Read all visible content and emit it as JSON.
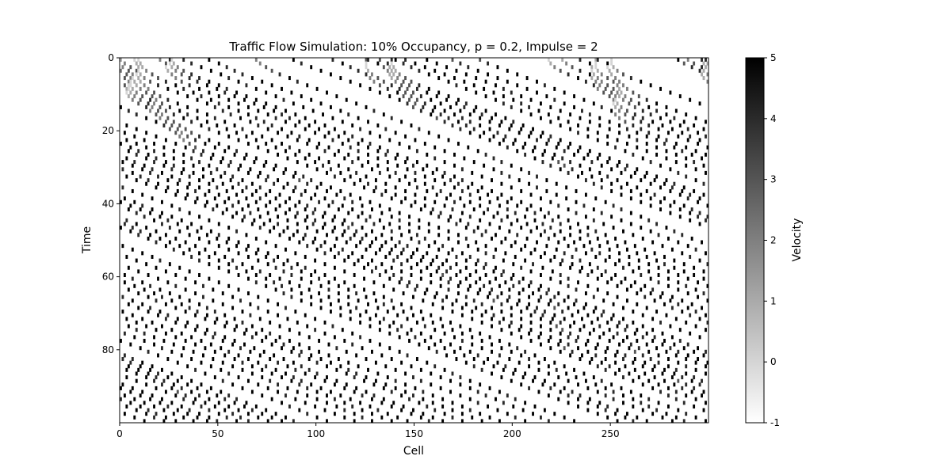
{
  "chart_data": {
    "type": "heatmap",
    "title": "Traffic Flow Simulation: 10% Occupancy, p = 0.2, Impulse = 2",
    "xlabel": "Cell",
    "ylabel": "Time",
    "xlim": [
      0,
      300
    ],
    "ylim": [
      0,
      100
    ],
    "y_inverted": true,
    "x_ticks": [
      0,
      50,
      100,
      150,
      200,
      250
    ],
    "y_ticks": [
      0,
      20,
      40,
      60,
      80
    ],
    "colorbar": {
      "label": "Velocity",
      "range": [
        -1,
        5
      ],
      "ticks": [
        -1,
        0,
        1,
        2,
        3,
        4,
        5
      ],
      "colormap": "gray_r",
      "empty_value": -1
    },
    "grid": false,
    "cells": 300,
    "timesteps": 100,
    "occupancy": 0.1,
    "p": 0.2,
    "impulse": 2
  }
}
